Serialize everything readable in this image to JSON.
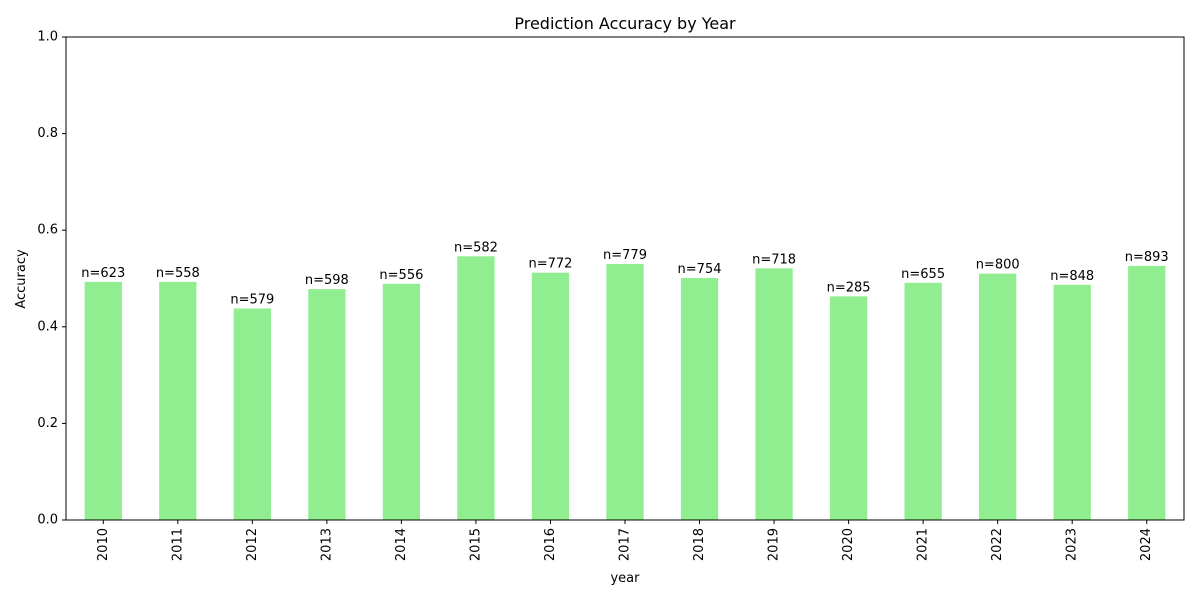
{
  "chart_data": {
    "type": "bar",
    "title": "Prediction Accuracy by Year",
    "xlabel": "year",
    "ylabel": "Accuracy",
    "ylim": [
      0,
      1.0
    ],
    "yticks": [
      "0.0",
      "0.2",
      "0.4",
      "0.6",
      "0.8",
      "1.0"
    ],
    "grid": false,
    "categories": [
      "2010",
      "2011",
      "2012",
      "2013",
      "2014",
      "2015",
      "2016",
      "2017",
      "2018",
      "2019",
      "2020",
      "2021",
      "2022",
      "2023",
      "2024"
    ],
    "values": [
      0.493,
      0.493,
      0.438,
      0.478,
      0.489,
      0.546,
      0.512,
      0.53,
      0.501,
      0.521,
      0.463,
      0.491,
      0.51,
      0.487,
      0.526
    ],
    "data_labels": [
      "n=623",
      "n=558",
      "n=579",
      "n=598",
      "n=556",
      "n=582",
      "n=772",
      "n=779",
      "n=754",
      "n=718",
      "n=285",
      "n=655",
      "n=800",
      "n=848",
      "n=893"
    ],
    "bar_color": "#90ee90"
  }
}
